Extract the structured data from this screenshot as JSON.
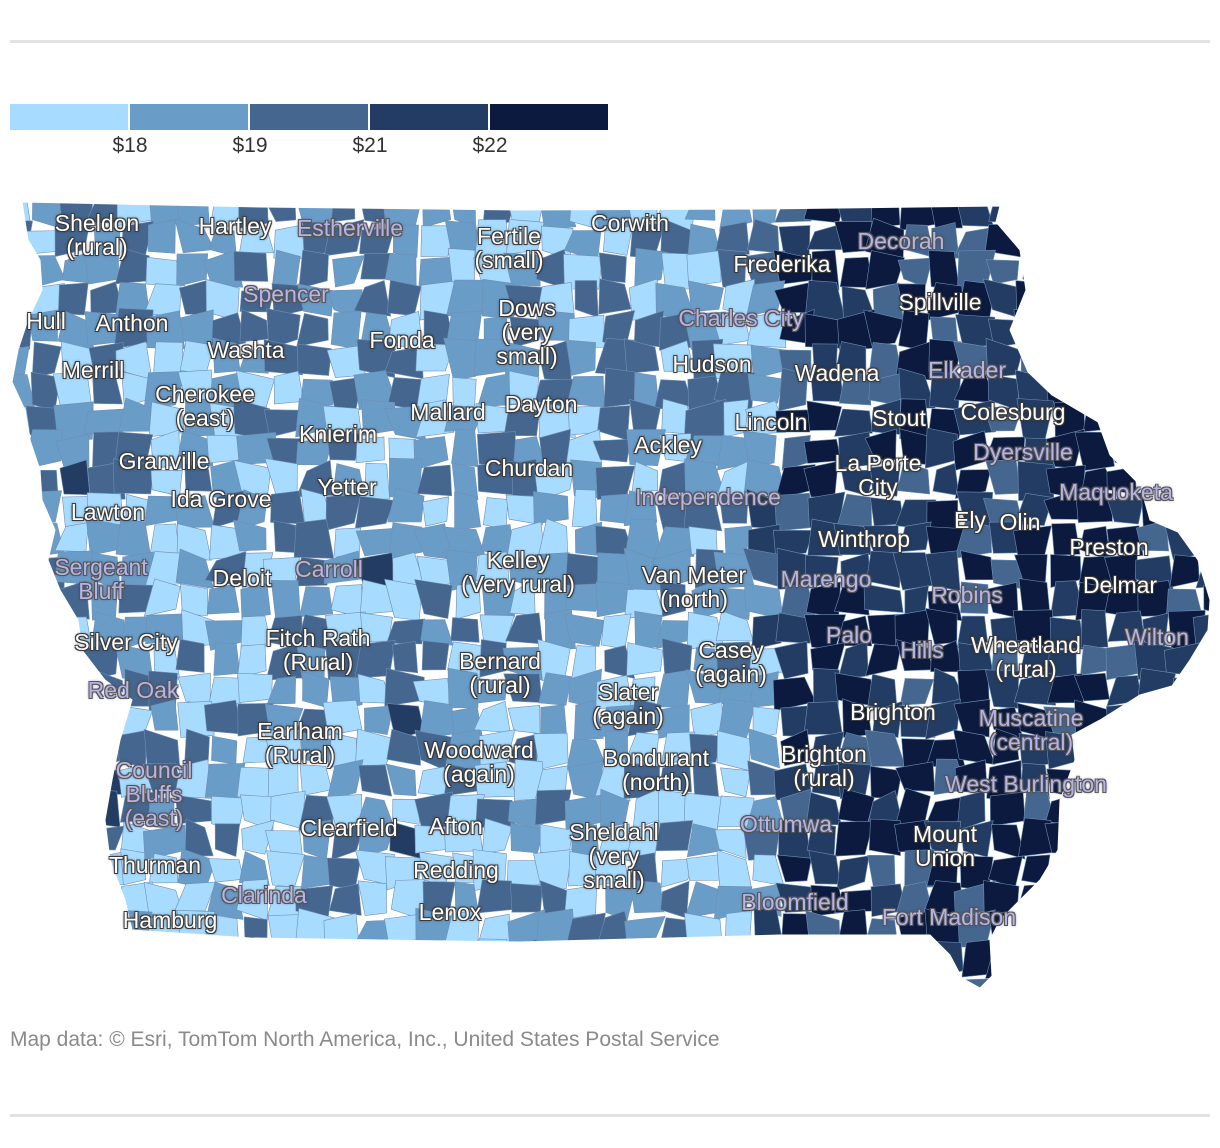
{
  "legend": {
    "colors": [
      "#a7dbff",
      "#6a9cc8",
      "#44668f",
      "#233c63",
      "#0b1a3e"
    ],
    "ticks": [
      "$18",
      "$19",
      "$21",
      "$22"
    ]
  },
  "map": {
    "state_fill_palette": [
      "#a7dbff",
      "#6a9cc8",
      "#44668f",
      "#233c63",
      "#0b1a3e"
    ],
    "labels": [
      {
        "text": "Sheldon\n(rural)",
        "style": "white"
      },
      {
        "text": "Hartley",
        "style": "white"
      },
      {
        "text": "Estherville",
        "style": "alt"
      },
      {
        "text": "Fertile\n(small)",
        "style": "white"
      },
      {
        "text": "Corwith",
        "style": "white"
      },
      {
        "text": "Decorah",
        "style": "alt"
      },
      {
        "text": "Frederika",
        "style": "white"
      },
      {
        "text": "Spencer",
        "style": "alt"
      },
      {
        "text": "Spillville",
        "style": "white"
      },
      {
        "text": "Hull",
        "style": "white"
      },
      {
        "text": "Anthon",
        "style": "white"
      },
      {
        "text": "Dows\n(very\nsmall)",
        "style": "white"
      },
      {
        "text": "Charles City",
        "style": "alt"
      },
      {
        "text": "Fonda",
        "style": "white"
      },
      {
        "text": "Washta",
        "style": "white"
      },
      {
        "text": "Hudson",
        "style": "white"
      },
      {
        "text": "Merrill",
        "style": "white"
      },
      {
        "text": "Wadena",
        "style": "white"
      },
      {
        "text": "Elkader",
        "style": "alt"
      },
      {
        "text": "Cherokee\n(east)",
        "style": "white"
      },
      {
        "text": "Dayton",
        "style": "white"
      },
      {
        "text": "Mallard",
        "style": "white"
      },
      {
        "text": "Colesburg",
        "style": "white"
      },
      {
        "text": "Stout",
        "style": "white"
      },
      {
        "text": "Lincoln",
        "style": "white"
      },
      {
        "text": "Knierim",
        "style": "white"
      },
      {
        "text": "Ackley",
        "style": "white"
      },
      {
        "text": "Granville",
        "style": "white"
      },
      {
        "text": "Dyersville",
        "style": "alt"
      },
      {
        "text": "Churdan",
        "style": "white"
      },
      {
        "text": "La Porte\nCity",
        "style": "white"
      },
      {
        "text": "Yetter",
        "style": "white"
      },
      {
        "text": "Maquoketa",
        "style": "alt"
      },
      {
        "text": "Ida Grove",
        "style": "white"
      },
      {
        "text": "Independence",
        "style": "alt"
      },
      {
        "text": "Lawton",
        "style": "white"
      },
      {
        "text": "Ely",
        "style": "white"
      },
      {
        "text": "Olin",
        "style": "white"
      },
      {
        "text": "Winthrop",
        "style": "white"
      },
      {
        "text": "Preston",
        "style": "white"
      },
      {
        "text": "Kelley\n(Very rural)",
        "style": "white"
      },
      {
        "text": "Sergeant\nBluff",
        "style": "alt"
      },
      {
        "text": "Carroll",
        "style": "alt"
      },
      {
        "text": "Deloit",
        "style": "white"
      },
      {
        "text": "Van Meter\n(north)",
        "style": "white"
      },
      {
        "text": "Marengo",
        "style": "alt"
      },
      {
        "text": "Delmar",
        "style": "white"
      },
      {
        "text": "Robins",
        "style": "alt"
      },
      {
        "text": "Silver City",
        "style": "white"
      },
      {
        "text": "Fitch Rath\n(Rural)",
        "style": "white"
      },
      {
        "text": "Wilton",
        "style": "alt"
      },
      {
        "text": "Palo",
        "style": "alt"
      },
      {
        "text": "Casey\n(again)",
        "style": "white"
      },
      {
        "text": "Wheatland\n(rural)",
        "style": "white"
      },
      {
        "text": "Hills",
        "style": "alt"
      },
      {
        "text": "Bernard\n(rural)",
        "style": "white"
      },
      {
        "text": "Red Oak",
        "style": "alt"
      },
      {
        "text": "Slater\n(again)",
        "style": "white"
      },
      {
        "text": "Brighton",
        "style": "white"
      },
      {
        "text": "Earlham\n(Rural)",
        "style": "white"
      },
      {
        "text": "Muscatine\n(central)",
        "style": "alt"
      },
      {
        "text": "Woodward\n(again)",
        "style": "white"
      },
      {
        "text": "Bondurant\n(north)",
        "style": "white"
      },
      {
        "text": "Brighton\n(rural)",
        "style": "white"
      },
      {
        "text": "Council\nBluffs\n(east)",
        "style": "alt"
      },
      {
        "text": "West Burlington",
        "style": "alt"
      },
      {
        "text": "Clearfield",
        "style": "white"
      },
      {
        "text": "Afton",
        "style": "white"
      },
      {
        "text": "Ottumwa",
        "style": "alt"
      },
      {
        "text": "Sheldahl\n(very\nsmall)",
        "style": "white"
      },
      {
        "text": "Mount\nUnion",
        "style": "white"
      },
      {
        "text": "Thurman",
        "style": "white"
      },
      {
        "text": "Redding",
        "style": "white"
      },
      {
        "text": "Clarinda",
        "style": "alt"
      },
      {
        "text": "Bloomfield",
        "style": "alt"
      },
      {
        "text": "Lenox",
        "style": "white"
      },
      {
        "text": "Fort Madison",
        "style": "alt"
      },
      {
        "text": "Hamburg",
        "style": "white"
      }
    ]
  },
  "credit": "Map data: © Esri, TomTom North America, Inc., United States Postal Service"
}
